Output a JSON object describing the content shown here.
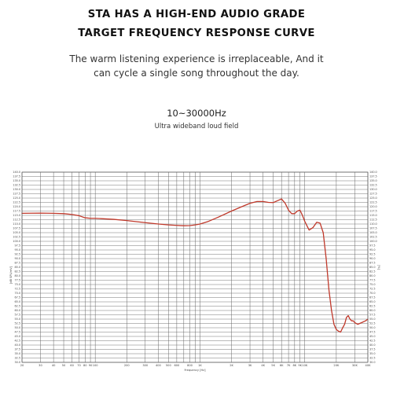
{
  "header": {
    "title_line1": "STA HAS A HIGH-END AUDIO GRADE",
    "title_line2": "TARGET FREQUENCY RESPONSE CURVE",
    "desc_line1": "The warm listening experience is irreplaceable, And it",
    "desc_line2": "can cycle a single song throughout the day.",
    "range": "10~30000Hz",
    "range_sub": "Ultra wideband loud field"
  },
  "chart_data": {
    "type": "line",
    "title": "",
    "xlabel": "Frequency [Hz]",
    "ylabel": "[dB SPL/mV]",
    "right_label": "[%]",
    "xscale": "log",
    "xlim": [
      20,
      40000
    ],
    "ylim": [
      30.0,
      140.0
    ],
    "y_ticks": [
      140.0,
      137.5,
      135.0,
      132.5,
      130.0,
      127.5,
      125.0,
      122.5,
      120.0,
      117.5,
      115.0,
      112.5,
      110.0,
      107.5,
      105.0,
      102.5,
      100.0,
      97.5,
      95.0,
      92.5,
      90.0,
      87.5,
      85.0,
      82.5,
      80.0,
      77.5,
      75.0,
      72.5,
      70.0,
      67.5,
      65.0,
      62.5,
      60.0,
      57.5,
      55.0,
      52.5,
      50.0,
      47.5,
      45.0,
      42.5,
      40.0,
      37.5,
      35.0,
      32.5,
      30.0
    ],
    "right_ticks": [
      140.0,
      137.5,
      135.0,
      132.5,
      130.0,
      127.5,
      125.0,
      122.5,
      120.0,
      117.5,
      115.0,
      112.5,
      110.0,
      107.5,
      105.0,
      102.5,
      100.0,
      97.5,
      95.0,
      92.5,
      90.0,
      87.5,
      85.0,
      82.5,
      80.0,
      77.5,
      75.0,
      72.5,
      70.0,
      67.5,
      65.0,
      62.5,
      60.0,
      57.5,
      55.0,
      52.5,
      50.0,
      47.5,
      45.0,
      42.5,
      40.0,
      37.5,
      35.0,
      32.5,
      30.0
    ],
    "x_gridlines": [
      20,
      30,
      40,
      50,
      60,
      70,
      80,
      90,
      100,
      200,
      300,
      400,
      500,
      600,
      700,
      800,
      900,
      1000,
      2000,
      3000,
      4000,
      5000,
      6000,
      7000,
      8000,
      9000,
      10000,
      20000,
      30000,
      40000
    ],
    "x_ticks": [
      {
        "v": 20,
        "label": "20"
      },
      {
        "v": 30,
        "label": "30"
      },
      {
        "v": 40,
        "label": "40"
      },
      {
        "v": 50,
        "label": "50"
      },
      {
        "v": 60,
        "label": "60"
      },
      {
        "v": 70,
        "label": "70"
      },
      {
        "v": 80,
        "label": "80"
      },
      {
        "v": 90,
        "label": "90"
      },
      {
        "v": 100,
        "label": "100"
      },
      {
        "v": 200,
        "label": "200"
      },
      {
        "v": 300,
        "label": "300"
      },
      {
        "v": 400,
        "label": "400"
      },
      {
        "v": 500,
        "label": "500"
      },
      {
        "v": 600,
        "label": "600"
      },
      {
        "v": 800,
        "label": "800"
      },
      {
        "v": 1000,
        "label": "1K"
      },
      {
        "v": 2000,
        "label": "2K"
      },
      {
        "v": 3000,
        "label": "3K"
      },
      {
        "v": 4000,
        "label": "4K"
      },
      {
        "v": 5000,
        "label": "5K"
      },
      {
        "v": 6000,
        "label": "6K"
      },
      {
        "v": 7000,
        "label": "7K"
      },
      {
        "v": 8000,
        "label": "8K"
      },
      {
        "v": 9000,
        "label": "9K"
      },
      {
        "v": 10000,
        "label": "10K"
      },
      {
        "v": 20000,
        "label": "20K"
      },
      {
        "v": 30000,
        "label": "30K"
      },
      {
        "v": 40000,
        "label": "40K"
      }
    ],
    "grid": true,
    "series": [
      {
        "color": "#c0392b",
        "x": [
          20,
          30,
          40,
          50,
          60,
          70,
          80,
          90,
          100,
          150,
          200,
          300,
          400,
          500,
          600,
          700,
          800,
          900,
          1000,
          1200,
          1500,
          2000,
          2500,
          3000,
          3500,
          4000,
          4500,
          5000,
          5500,
          6000,
          6500,
          7000,
          7500,
          8000,
          8500,
          9000,
          9500,
          10000,
          11000,
          12000,
          13000,
          14000,
          15000,
          16000,
          17000,
          18000,
          19000,
          20000,
          21000,
          22000,
          23000,
          24000,
          25000,
          26000,
          27000,
          28000,
          29000,
          30000,
          32000,
          35000,
          38000,
          40000
        ],
        "y": [
          116.2,
          116.3,
          116.2,
          116.0,
          115.5,
          114.8,
          113.6,
          113.3,
          113.3,
          112.7,
          112.0,
          110.8,
          110.0,
          109.5,
          109.2,
          109.0,
          109.1,
          109.5,
          110.0,
          111.5,
          114.0,
          117.5,
          120.0,
          122.0,
          123.0,
          123.0,
          122.5,
          122.4,
          123.5,
          124.5,
          122.0,
          118.0,
          116.0,
          116.0,
          117.5,
          118.0,
          115.0,
          111.5,
          106.5,
          108.0,
          111.0,
          110.5,
          105.0,
          90.0,
          72.0,
          60.0,
          52.0,
          49.0,
          48.0,
          47.5,
          50.0,
          52.0,
          56.0,
          57.0,
          55.0,
          54.0,
          54.0,
          53.0,
          52.0,
          53.0,
          54.0,
          55.0
        ]
      }
    ]
  }
}
